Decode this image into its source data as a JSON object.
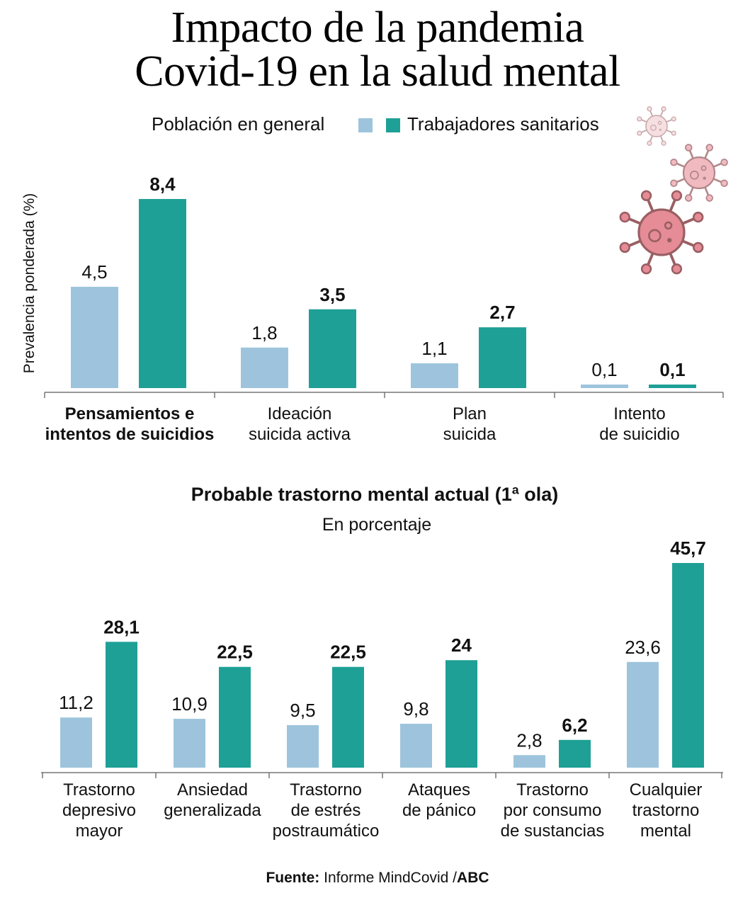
{
  "title_line1": "Impacto de la pandemia",
  "title_line2": "Covid-19 en la salud mental",
  "legend": {
    "general": "Población en general",
    "sanitarios": "Trabajadores sanitarios"
  },
  "colors": {
    "general": "#9dc4dc",
    "sanitarios": "#1fa096",
    "virus_light": "#f0c6ca",
    "virus_mid": "#eda3ab",
    "virus_dark": "#e58c96",
    "virus_outline": "#9a5f63"
  },
  "icons": [
    "virus-icon",
    "virus-icon",
    "virus-icon"
  ],
  "source": {
    "label": "Fuente:",
    "text": " Informe MindCovid /",
    "brand": "ABC"
  },
  "chart_data": [
    {
      "type": "bar",
      "title": "",
      "ylabel": "Prevalencia ponderada (%)",
      "xlabel": "",
      "ylim": [
        0,
        8.4
      ],
      "categories": [
        {
          "line1": "Pensamientos e",
          "line2": "intentos de suicidios",
          "bold": true
        },
        {
          "line1": "Ideación",
          "line2": "suicida activa",
          "bold": false
        },
        {
          "line1": "Plan",
          "line2": "suicida",
          "bold": false
        },
        {
          "line1": "Intento",
          "line2": "de suicidio",
          "bold": false
        }
      ],
      "series": [
        {
          "name": "Población en general",
          "values": [
            4.5,
            1.8,
            1.1,
            0.1
          ],
          "labels": [
            "4,5",
            "1,8",
            "1,1",
            "0,1"
          ]
        },
        {
          "name": "Trabajadores sanitarios",
          "values": [
            8.4,
            3.5,
            2.7,
            0.1
          ],
          "labels": [
            "8,4",
            "3,5",
            "2,7",
            "0,1"
          ]
        }
      ]
    },
    {
      "type": "bar",
      "title": "Probable trastorno mental actual (1ª ola)",
      "subtitle": "En porcentaje",
      "xlabel": "",
      "ylabel": "",
      "ylim": [
        0,
        45.7
      ],
      "categories": [
        {
          "lines": [
            "Trastorno",
            "depresivo",
            "mayor"
          ]
        },
        {
          "lines": [
            "Ansiedad",
            "generalizada"
          ]
        },
        {
          "lines": [
            "Trastorno",
            "de estrés",
            "postraumático"
          ]
        },
        {
          "lines": [
            "Ataques",
            "de pánico"
          ]
        },
        {
          "lines": [
            "Trastorno",
            "por consumo",
            "de sustancias"
          ]
        },
        {
          "lines": [
            "Cualquier",
            "trastorno",
            "mental"
          ]
        }
      ],
      "series": [
        {
          "name": "Población en general",
          "values": [
            11.2,
            10.9,
            9.5,
            9.8,
            2.8,
            23.6
          ],
          "labels": [
            "11,2",
            "10,9",
            "9,5",
            "9,8",
            "2,8",
            "23,6"
          ]
        },
        {
          "name": "Trabajadores sanitarios",
          "values": [
            28.1,
            22.5,
            22.5,
            24,
            6.2,
            45.7
          ],
          "labels": [
            "28,1",
            "22,5",
            "22,5",
            "24",
            "6,2",
            "45,7"
          ]
        }
      ]
    }
  ]
}
